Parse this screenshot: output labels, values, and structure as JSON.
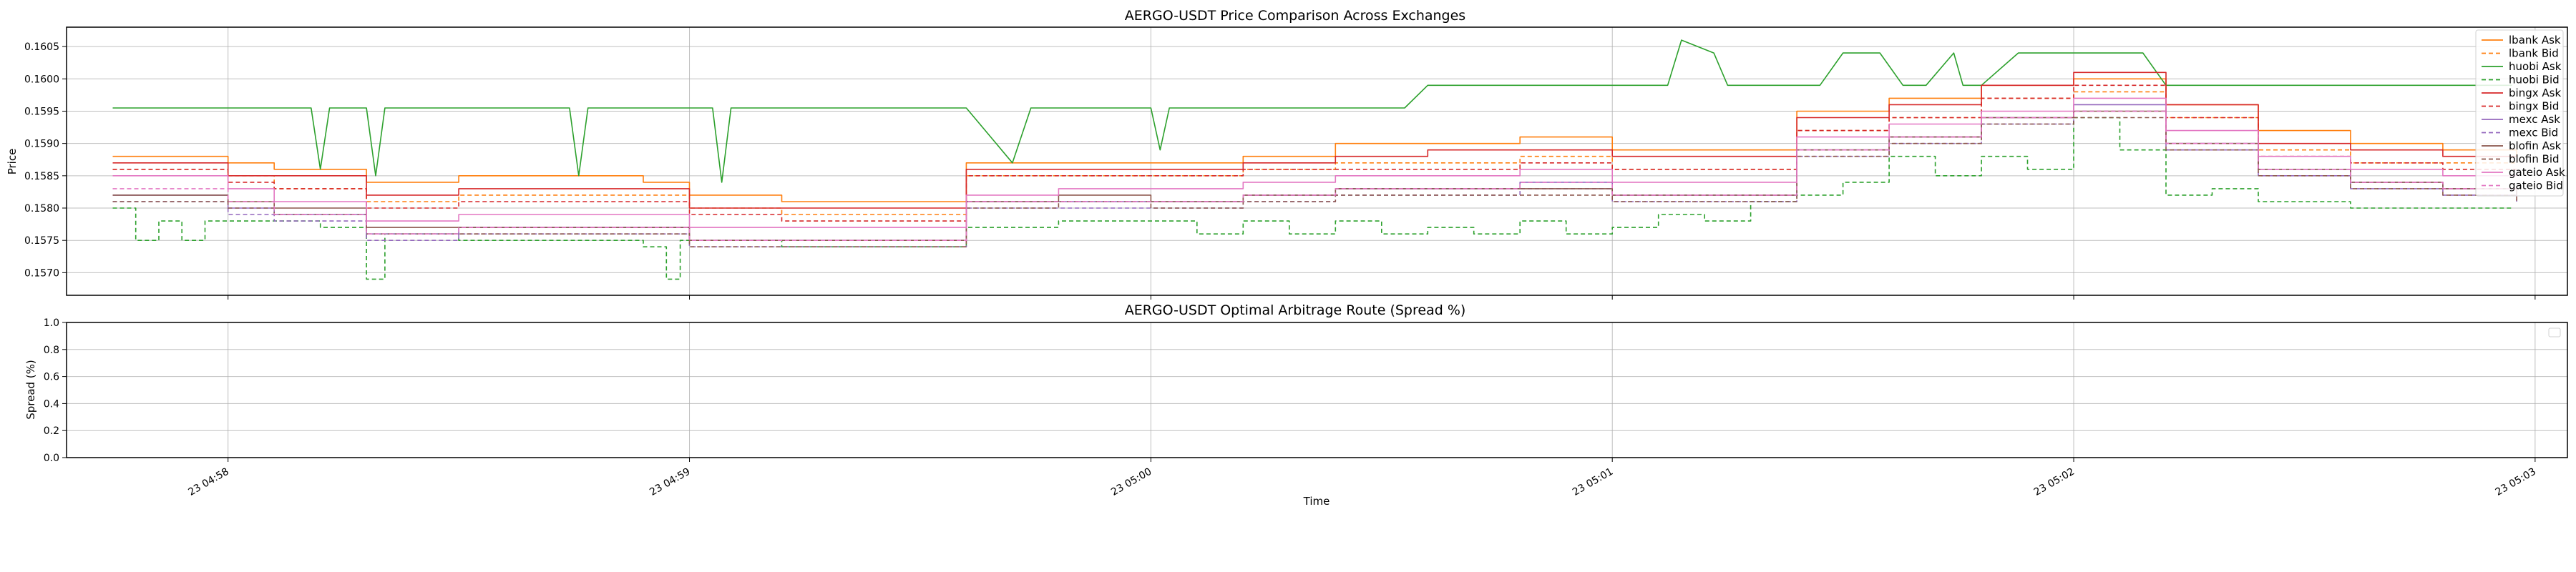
{
  "chart_data": [
    {
      "type": "line",
      "title": "AERGO-USDT Price Comparison Across Exchanges",
      "xlabel": "",
      "ylabel": "Price",
      "ylim": [
        0.15665,
        0.1608
      ],
      "yticks": [
        "0.1570",
        "0.1575",
        "0.1580",
        "0.1585",
        "0.1590",
        "0.1595",
        "0.1600",
        "0.1605"
      ],
      "ytick_values": [
        0.157,
        0.1575,
        0.158,
        0.1585,
        0.159,
        0.1595,
        0.16,
        0.1605
      ],
      "xlim_minutes": [
        -0.35,
        5.07
      ],
      "grid": true,
      "legend_position": "top-right",
      "series": [
        {
          "name": "lbank Ask",
          "color": "#ff7f0e",
          "dash": "solid",
          "x": [
            -0.25,
            -0.05,
            0.0,
            0.1,
            0.3,
            0.5,
            0.7,
            0.9,
            1.0,
            1.2,
            1.4,
            1.6,
            1.8,
            2.0,
            2.2,
            2.4,
            2.6,
            2.8,
            3.0,
            3.2,
            3.4,
            3.6,
            3.8,
            4.0,
            4.2,
            4.4,
            4.6,
            4.8,
            4.96
          ],
          "y": [
            0.1588,
            0.1588,
            0.1587,
            0.1586,
            0.1584,
            0.1585,
            0.1585,
            0.1584,
            0.1582,
            0.1581,
            0.1581,
            0.1587,
            0.1587,
            0.1587,
            0.1588,
            0.159,
            0.159,
            0.1591,
            0.1589,
            0.1589,
            0.1595,
            0.1597,
            0.1599,
            0.16,
            0.1596,
            0.1592,
            0.159,
            0.1589,
            0.1588
          ]
        },
        {
          "name": "lbank Bid",
          "color": "#ff7f0e",
          "dash": "dashed",
          "x": [
            -0.25,
            -0.05,
            0.0,
            0.1,
            0.3,
            0.5,
            0.7,
            0.9,
            1.0,
            1.2,
            1.4,
            1.6,
            1.8,
            2.0,
            2.2,
            2.4,
            2.6,
            2.8,
            3.0,
            3.2,
            3.4,
            3.6,
            3.8,
            4.0,
            4.2,
            4.4,
            4.6,
            4.8,
            4.96
          ],
          "y": [
            0.1586,
            0.1586,
            0.1585,
            0.1583,
            0.1581,
            0.1582,
            0.1582,
            0.1582,
            0.158,
            0.1579,
            0.1579,
            0.1585,
            0.1585,
            0.1585,
            0.1586,
            0.1587,
            0.1587,
            0.1588,
            0.1586,
            0.1586,
            0.1592,
            0.1594,
            0.1597,
            0.1598,
            0.1594,
            0.1589,
            0.1587,
            0.1587,
            0.1587
          ]
        },
        {
          "name": "huobi Ask",
          "color": "#2ca02c",
          "dash": "solid",
          "x": [
            -0.25,
            0.18,
            0.2,
            0.22,
            0.3,
            0.32,
            0.34,
            0.4,
            0.74,
            0.76,
            0.78,
            1.05,
            1.07,
            1.09,
            1.6,
            1.7,
            1.74,
            1.76,
            2.0,
            2.02,
            2.04,
            2.5,
            2.55,
            2.6,
            3.0,
            3.05,
            3.12,
            3.15,
            3.22,
            3.25,
            3.45,
            3.5,
            3.5,
            3.58,
            3.63,
            3.68,
            3.74,
            3.76,
            3.8,
            3.88,
            3.92,
            4.15,
            4.2,
            4.26,
            4.3,
            4.95
          ],
          "y": [
            0.15955,
            0.15955,
            0.1586,
            0.15955,
            0.15955,
            0.1585,
            0.15955,
            0.15955,
            0.15955,
            0.1585,
            0.15955,
            0.15955,
            0.1584,
            0.15955,
            0.15955,
            0.1587,
            0.15955,
            0.15955,
            0.15955,
            0.1589,
            0.15955,
            0.15955,
            0.15955,
            0.1599,
            0.1599,
            0.1599,
            0.1599,
            0.1606,
            0.1604,
            0.1599,
            0.1599,
            0.1604,
            0.1604,
            0.1604,
            0.1599,
            0.1599,
            0.1604,
            0.1599,
            0.1599,
            0.1604,
            0.1604,
            0.1604,
            0.1599,
            0.1599,
            0.1599,
            0.1599
          ]
        },
        {
          "name": "huobi Bid",
          "color": "#2ca02c",
          "dash": "dashed",
          "x": [
            -0.25,
            -0.2,
            -0.15,
            -0.1,
            -0.05,
            0.0,
            0.2,
            0.3,
            0.3,
            0.34,
            0.34,
            0.5,
            0.8,
            0.9,
            0.95,
            0.98,
            1.0,
            1.2,
            1.4,
            1.5,
            1.6,
            1.7,
            1.8,
            2.0,
            2.1,
            2.2,
            2.3,
            2.4,
            2.5,
            2.6,
            2.7,
            2.8,
            2.9,
            3.0,
            3.1,
            3.2,
            3.3,
            3.4,
            3.5,
            3.6,
            3.7,
            3.8,
            3.9,
            4.0,
            4.1,
            4.2,
            4.3,
            4.4,
            4.5,
            4.6,
            4.7,
            4.8,
            4.95
          ],
          "y": [
            0.158,
            0.1575,
            0.1578,
            0.1575,
            0.1578,
            0.1578,
            0.1577,
            0.1576,
            0.1569,
            0.1576,
            0.1576,
            0.1575,
            0.1575,
            0.1574,
            0.1569,
            0.1575,
            0.1575,
            0.1574,
            0.1574,
            0.1574,
            0.1577,
            0.1577,
            0.1578,
            0.1578,
            0.1576,
            0.1578,
            0.1576,
            0.1578,
            0.1576,
            0.1577,
            0.1576,
            0.1578,
            0.1576,
            0.1577,
            0.1579,
            0.1578,
            0.1581,
            0.1582,
            0.1584,
            0.1588,
            0.1585,
            0.1588,
            0.1586,
            0.1594,
            0.1589,
            0.1582,
            0.1583,
            0.1581,
            0.1581,
            0.158,
            0.158,
            0.158,
            0.158
          ]
        },
        {
          "name": "bingx Ask",
          "color": "#d62728",
          "dash": "solid",
          "x": [
            -0.25,
            -0.05,
            0.0,
            0.1,
            0.3,
            0.5,
            0.7,
            0.9,
            1.0,
            1.2,
            1.4,
            1.6,
            1.8,
            2.0,
            2.2,
            2.4,
            2.6,
            2.8,
            3.0,
            3.2,
            3.4,
            3.6,
            3.8,
            4.0,
            4.2,
            4.4,
            4.6,
            4.8,
            4.96
          ],
          "y": [
            0.1587,
            0.1587,
            0.1585,
            0.1585,
            0.1582,
            0.1583,
            0.1583,
            0.1583,
            0.158,
            0.158,
            0.158,
            0.1586,
            0.1586,
            0.1586,
            0.1587,
            0.1588,
            0.1589,
            0.1589,
            0.1588,
            0.1588,
            0.1594,
            0.1596,
            0.1599,
            0.1601,
            0.1596,
            0.159,
            0.1589,
            0.1588,
            0.1588
          ]
        },
        {
          "name": "bingx Bid",
          "color": "#d62728",
          "dash": "dashed",
          "x": [
            -0.25,
            -0.05,
            0.0,
            0.1,
            0.3,
            0.5,
            0.7,
            0.9,
            1.0,
            1.2,
            1.4,
            1.6,
            1.8,
            2.0,
            2.2,
            2.4,
            2.6,
            2.8,
            3.0,
            3.2,
            3.4,
            3.6,
            3.8,
            4.0,
            4.2,
            4.4,
            4.6,
            4.8,
            4.96
          ],
          "y": [
            0.1586,
            0.1586,
            0.1584,
            0.1583,
            0.158,
            0.1581,
            0.1581,
            0.1581,
            0.1579,
            0.1578,
            0.1578,
            0.1585,
            0.1585,
            0.1585,
            0.1586,
            0.1586,
            0.1586,
            0.1587,
            0.1586,
            0.1586,
            0.1592,
            0.1594,
            0.1597,
            0.1599,
            0.1594,
            0.1588,
            0.1587,
            0.1586,
            0.1586
          ]
        },
        {
          "name": "mexc Ask",
          "color": "#9467bd",
          "dash": "solid",
          "x": [
            -0.25,
            -0.05,
            0.0,
            0.1,
            0.3,
            0.5,
            0.7,
            0.9,
            1.0,
            1.2,
            1.4,
            1.6,
            1.8,
            2.0,
            2.2,
            2.4,
            2.6,
            2.8,
            3.0,
            3.2,
            3.4,
            3.6,
            3.8,
            4.0,
            4.2,
            4.4,
            4.6,
            4.8,
            4.96
          ],
          "y": [
            0.1582,
            0.1582,
            0.158,
            0.1579,
            0.1576,
            0.1577,
            0.1577,
            0.1577,
            0.1575,
            0.1575,
            0.1575,
            0.1581,
            0.1581,
            0.1581,
            0.1582,
            0.1583,
            0.1583,
            0.1584,
            0.1582,
            0.1582,
            0.1589,
            0.1591,
            0.1594,
            0.1596,
            0.159,
            0.1586,
            0.1584,
            0.1583,
            0.1582
          ]
        },
        {
          "name": "mexc Bid",
          "color": "#9467bd",
          "dash": "dashed",
          "x": [
            -0.25,
            -0.05,
            0.0,
            0.1,
            0.3,
            0.5,
            0.7,
            0.9,
            1.0,
            1.2,
            1.4,
            1.6,
            1.8,
            2.0,
            2.2,
            2.4,
            2.6,
            2.8,
            3.0,
            3.2,
            3.4,
            3.6,
            3.8,
            4.0,
            4.2,
            4.4,
            4.6,
            4.8,
            4.96
          ],
          "y": [
            0.1581,
            0.1581,
            0.1579,
            0.1578,
            0.1575,
            0.1576,
            0.1576,
            0.1576,
            0.1574,
            0.1574,
            0.1574,
            0.158,
            0.158,
            0.158,
            0.1581,
            0.1582,
            0.1582,
            0.1583,
            0.1581,
            0.1581,
            0.1588,
            0.159,
            0.1593,
            0.1595,
            0.1589,
            0.1585,
            0.1583,
            0.1582,
            0.1581
          ]
        },
        {
          "name": "blofin Ask",
          "color": "#8c564b",
          "dash": "solid",
          "x": [
            -0.25,
            -0.05,
            0.0,
            0.1,
            0.3,
            0.5,
            0.7,
            0.9,
            1.0,
            1.2,
            1.4,
            1.6,
            1.8,
            2.0,
            2.2,
            2.4,
            2.6,
            2.8,
            3.0,
            3.2,
            3.4,
            3.6,
            3.8,
            4.0,
            4.2,
            4.4,
            4.6,
            4.8,
            4.96
          ],
          "y": [
            0.1582,
            0.1582,
            0.1581,
            0.158,
            0.1577,
            0.1577,
            0.1577,
            0.1577,
            0.1575,
            0.1575,
            0.1575,
            0.1581,
            0.1582,
            0.1581,
            0.1582,
            0.1583,
            0.1583,
            0.1583,
            0.1582,
            0.1582,
            0.1589,
            0.1591,
            0.1594,
            0.1595,
            0.159,
            0.1586,
            0.1584,
            0.1583,
            0.1582
          ]
        },
        {
          "name": "blofin Bid",
          "color": "#8c564b",
          "dash": "dashed",
          "x": [
            -0.25,
            -0.05,
            0.0,
            0.1,
            0.3,
            0.5,
            0.7,
            0.9,
            1.0,
            1.2,
            1.4,
            1.6,
            1.8,
            2.0,
            2.2,
            2.4,
            2.6,
            2.8,
            3.0,
            3.2,
            3.4,
            3.6,
            3.8,
            4.0,
            4.2,
            4.4,
            4.6,
            4.8,
            4.96
          ],
          "y": [
            0.1581,
            0.1581,
            0.158,
            0.1579,
            0.1576,
            0.1576,
            0.1576,
            0.1576,
            0.1574,
            0.1574,
            0.1574,
            0.158,
            0.1581,
            0.158,
            0.1581,
            0.1582,
            0.1582,
            0.1582,
            0.1581,
            0.1581,
            0.1588,
            0.159,
            0.1593,
            0.1594,
            0.1589,
            0.1585,
            0.1583,
            0.1582,
            0.1581
          ]
        },
        {
          "name": "gateio Ask",
          "color": "#e377c2",
          "dash": "solid",
          "x": [
            -0.25,
            -0.05,
            0.0,
            0.1,
            0.3,
            0.5,
            0.7,
            0.9,
            1.0,
            1.2,
            1.4,
            1.6,
            1.8,
            2.0,
            2.2,
            2.4,
            2.6,
            2.8,
            3.0,
            3.2,
            3.4,
            3.6,
            3.8,
            4.0,
            4.2,
            4.4,
            4.6,
            4.8,
            4.96
          ],
          "y": [
            0.1585,
            0.1585,
            0.1583,
            0.1581,
            0.1578,
            0.1579,
            0.1579,
            0.1579,
            0.1577,
            0.1577,
            0.1577,
            0.1582,
            0.1583,
            0.1583,
            0.1584,
            0.1585,
            0.1585,
            0.1586,
            0.1584,
            0.1584,
            0.1591,
            0.1593,
            0.1595,
            0.1597,
            0.1592,
            0.1588,
            0.1586,
            0.1585,
            0.1585
          ]
        },
        {
          "name": "gateio Bid",
          "color": "#e377c2",
          "dash": "dashed",
          "x": [
            -0.25,
            -0.05,
            0.0,
            0.1,
            0.3,
            0.5,
            0.7,
            0.9,
            1.0,
            1.2,
            1.4,
            1.6,
            1.8,
            2.0,
            2.2,
            2.4,
            2.6,
            2.8,
            3.0,
            3.2,
            3.4,
            3.6,
            3.8,
            4.0,
            4.2,
            4.4,
            4.6,
            4.8,
            4.96
          ],
          "y": [
            0.1583,
            0.1583,
            0.1581,
            0.1579,
            0.1576,
            0.1577,
            0.1577,
            0.1577,
            0.1575,
            0.1575,
            0.1575,
            0.1581,
            0.1581,
            0.1581,
            0.1582,
            0.1583,
            0.1583,
            0.1584,
            0.1582,
            0.1582,
            0.1589,
            0.1591,
            0.1594,
            0.1595,
            0.159,
            0.1586,
            0.1584,
            0.1583,
            0.1583
          ]
        }
      ]
    },
    {
      "type": "line",
      "title": "AERGO-USDT Optimal Arbitrage Route (Spread %)",
      "xlabel": "Time",
      "ylabel": "Spread (%)",
      "ylim": [
        0.0,
        1.0
      ],
      "yticks": [
        "0.0",
        "0.2",
        "0.4",
        "0.6",
        "0.8",
        "1.0"
      ],
      "ytick_values": [
        0.0,
        0.2,
        0.4,
        0.6,
        0.8,
        1.0
      ],
      "xticks": [
        "23 04:58",
        "23 04:59",
        "23 05:00",
        "23 05:01",
        "23 05:02",
        "23 05:03"
      ],
      "xtick_values": [
        0,
        1,
        2,
        3,
        4,
        5
      ],
      "xlim_minutes": [
        -0.35,
        5.07
      ],
      "grid": true,
      "legend_position": "top-right",
      "series": []
    }
  ]
}
